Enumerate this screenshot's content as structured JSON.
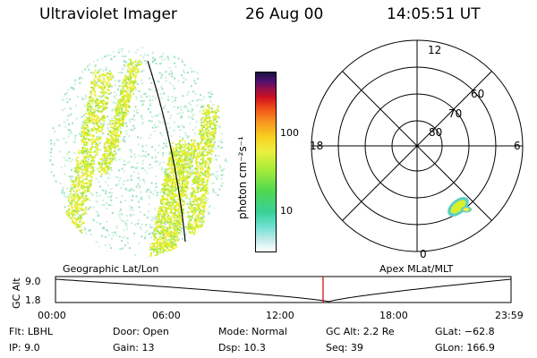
{
  "header": {
    "instrument": "Ultraviolet Imager",
    "date": "26 Aug 00",
    "time": "14:05:51 UT"
  },
  "colorbar": {
    "unit_label": "photon cm⁻²s⁻¹",
    "ticks": [
      "100",
      "10"
    ],
    "scale": "log"
  },
  "polar": {
    "lat_labels": [
      "80",
      "70",
      "60"
    ],
    "mlt_labels": {
      "top": "12",
      "left": "18",
      "right": "6",
      "bottom": "0"
    }
  },
  "projections": {
    "left": "Geographic Lat/Lon",
    "right": "Apex MLat/MLT"
  },
  "orbit": {
    "ylabel": "GC Alt",
    "ytick_top": "9.0",
    "ytick_bottom": "1.8",
    "xticks": [
      "00:00",
      "06:00",
      "12:00",
      "18:00",
      "23:59"
    ],
    "current_time_fraction": 0.5874
  },
  "info": {
    "flt": "Flt: LBHL",
    "ip": "IP:  9.0",
    "door": "Door: Open",
    "gain": "Gain: 13",
    "mode": "Mode: Normal",
    "dsp": "Dsp:    10.3",
    "gcalt": "GC Alt: 2.2 Re",
    "seq": "Seq: 39",
    "glat": "GLat: −62.8",
    "glon": "GLon: 166.9"
  },
  "colors": {
    "current_time_marker": "#cc0000",
    "aurora_low": "#c8f0d8",
    "aurora_mid": "#d8f028",
    "aurora_high": "#f8ec3c"
  }
}
